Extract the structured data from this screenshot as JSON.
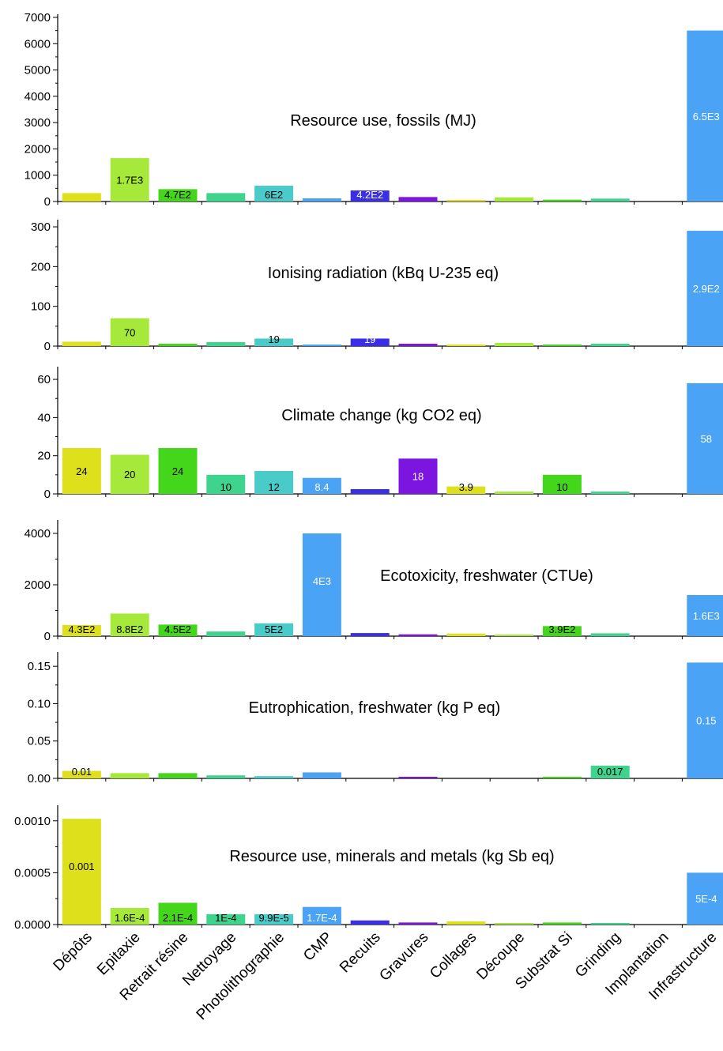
{
  "chart_data": {
    "type": "bar",
    "categories": [
      "Dépôts",
      "Epitaxie",
      "Retrait résine",
      "Nettoyage",
      "Photolithographie",
      "CMP",
      "Recuits",
      "Gravures",
      "Collages",
      "Découpe",
      "Substrat Si",
      "Grinding",
      "Implantation",
      "Infrastructure"
    ],
    "colors": [
      "#dfe01c",
      "#a6e93a",
      "#43d61b",
      "#3fd48d",
      "#48cbc9",
      "#4aa3f5",
      "#3a2fe6",
      "#7d15e0",
      "#dfe01c",
      "#a6e93a",
      "#43d61b",
      "#3fd48d",
      "#48cbc9",
      "#4aa3f5"
    ],
    "panels": [
      {
        "title": "Resource use, fossils (MJ)",
        "ylim": [
          0,
          7000
        ],
        "ticks": [
          "0",
          "1000",
          "2000",
          "3000",
          "4000",
          "5000",
          "6000",
          "7000"
        ],
        "tick_values": [
          0,
          1000,
          2000,
          3000,
          4000,
          5000,
          6000,
          7000
        ],
        "values": [
          320,
          1650,
          470,
          320,
          600,
          120,
          420,
          170,
          60,
          160,
          70,
          110,
          0,
          6500
        ],
        "labels": [
          "",
          "1.7E3",
          "4.7E2",
          "",
          "6E2",
          "",
          "4.2E2",
          "",
          "",
          "",
          "",
          "",
          "",
          "6.5E3"
        ]
      },
      {
        "title": "Ionising radiation (kBq U-235 eq)",
        "ylim": [
          0,
          310
        ],
        "ticks": [
          "0",
          "100",
          "200",
          "300"
        ],
        "tick_values": [
          0,
          100,
          200,
          300
        ],
        "values": [
          11,
          70,
          6,
          10,
          19,
          3,
          19,
          6,
          2,
          8,
          1,
          6,
          0,
          290
        ],
        "labels": [
          "",
          "70",
          "",
          "",
          "19",
          "",
          "19",
          "",
          "",
          "",
          "",
          "",
          "",
          "2.9E2"
        ]
      },
      {
        "title": "Climate change (kg CO2 eq)",
        "ylim": [
          0,
          65
        ],
        "ticks": [
          "0",
          "20",
          "40",
          "60"
        ],
        "tick_values": [
          0,
          20,
          40,
          60
        ],
        "values": [
          24,
          20.5,
          24,
          10,
          12,
          8.4,
          2.5,
          18.5,
          3.9,
          1.2,
          10,
          1.2,
          0,
          58
        ],
        "labels": [
          "24",
          "20",
          "24",
          "10",
          "12",
          "8.4",
          "",
          "18",
          "3.9",
          "",
          "10",
          "",
          "",
          "58"
        ]
      },
      {
        "title": "Ecotoxicity, freshwater (CTUe)",
        "ylim": [
          0,
          4400
        ],
        "ticks": [
          "0",
          "2000",
          "4000"
        ],
        "tick_values": [
          0,
          2000,
          4000
        ],
        "values": [
          430,
          880,
          450,
          180,
          500,
          4000,
          120,
          70,
          100,
          40,
          390,
          110,
          0,
          1600
        ],
        "labels": [
          "4.3E2",
          "8.8E2",
          "4.5E2",
          "",
          "5E2",
          "4E3",
          "",
          "",
          "",
          "",
          "3.9E2",
          "",
          "",
          "1.6E3"
        ]
      },
      {
        "title": "Eutrophication, freshwater (kg P eq)",
        "ylim": [
          0,
          0.165
        ],
        "ticks": [
          "0.00",
          "0.05",
          "0.10",
          "0.15"
        ],
        "tick_values": [
          0,
          0.05,
          0.1,
          0.15
        ],
        "values": [
          0.01,
          0.007,
          0.007,
          0.004,
          0.003,
          0.008,
          0,
          0.002,
          0,
          0,
          0.001,
          0.017,
          0,
          0.155
        ],
        "labels": [
          "0.01",
          "",
          "",
          "",
          "",
          "",
          "",
          "",
          "",
          "",
          "",
          "0.017",
          "",
          "0.15"
        ]
      },
      {
        "title": "Resource use, minerals and metals (kg Sb eq)",
        "ylim": [
          0,
          0.00112
        ],
        "ticks": [
          "0.0000",
          "0.0005",
          "0.0010"
        ],
        "tick_values": [
          0,
          0.0005,
          0.001
        ],
        "values": [
          0.00102,
          0.00016,
          0.00021,
          0.0001,
          0.0001,
          0.00017,
          4e-05,
          2e-05,
          3e-05,
          1e-05,
          2e-05,
          1e-05,
          0,
          0.0005
        ],
        "labels": [
          "0.001",
          "1.6E-4",
          "2.1E-4",
          "1E-4",
          "9.9E-5",
          "1.7E-4",
          "",
          "",
          "",
          "",
          "",
          "",
          "",
          "5E-4"
        ]
      }
    ]
  }
}
